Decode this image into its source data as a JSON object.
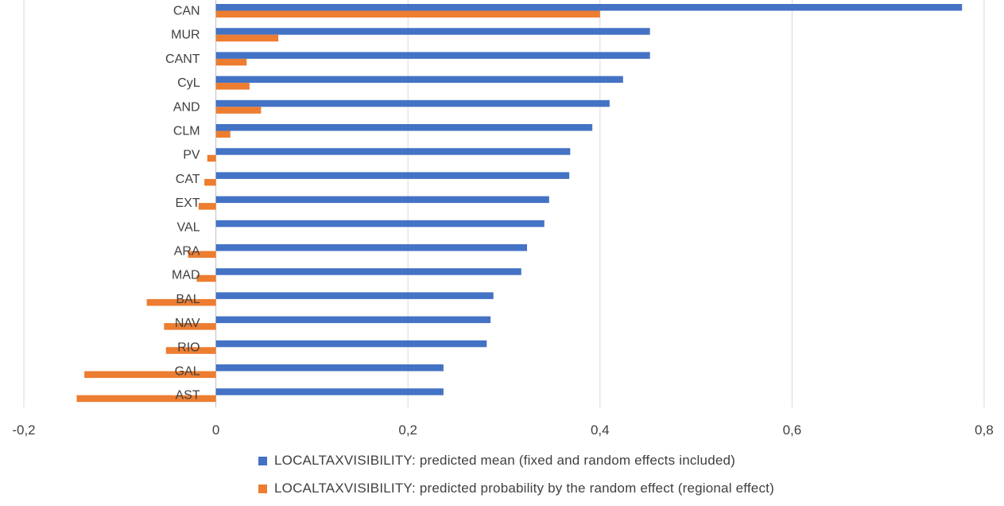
{
  "chart_data": {
    "type": "bar",
    "orientation": "horizontal",
    "categories": [
      "CAN",
      "MUR",
      "CANT",
      "CyL",
      "AND",
      "CLM",
      "PV",
      "CAT",
      "EXT",
      "VAL",
      "ARA",
      "MAD",
      "BAL",
      "NAV",
      "RIO",
      "GAL",
      "AST"
    ],
    "series": [
      {
        "name": "LOCALTAXVISIBILITY: predicted mean (fixed and random effects included)",
        "color": "#4472C4",
        "values": [
          0.777,
          0.452,
          0.452,
          0.424,
          0.41,
          0.392,
          0.369,
          0.368,
          0.347,
          0.342,
          0.324,
          0.318,
          0.289,
          0.286,
          0.282,
          0.237,
          0.237
        ]
      },
      {
        "name": "LOCALTAXVISIBILITY: predicted probability by the random effect (regional effect)",
        "color": "#ED7D31",
        "values": [
          0.4,
          0.065,
          0.032,
          0.035,
          0.047,
          0.015,
          -0.009,
          -0.012,
          -0.018,
          0.0,
          -0.029,
          -0.02,
          -0.072,
          -0.054,
          -0.052,
          -0.137,
          -0.145
        ]
      }
    ],
    "xlim": [
      -0.2,
      0.8
    ],
    "xticks": [
      -0.2,
      0,
      0.2,
      0.4,
      0.6,
      0.8
    ],
    "xtick_labels": [
      "-0,2",
      "0",
      "0,2",
      "0,4",
      "0,6",
      "0,8"
    ],
    "grid": true,
    "legend_position": "bottom"
  }
}
